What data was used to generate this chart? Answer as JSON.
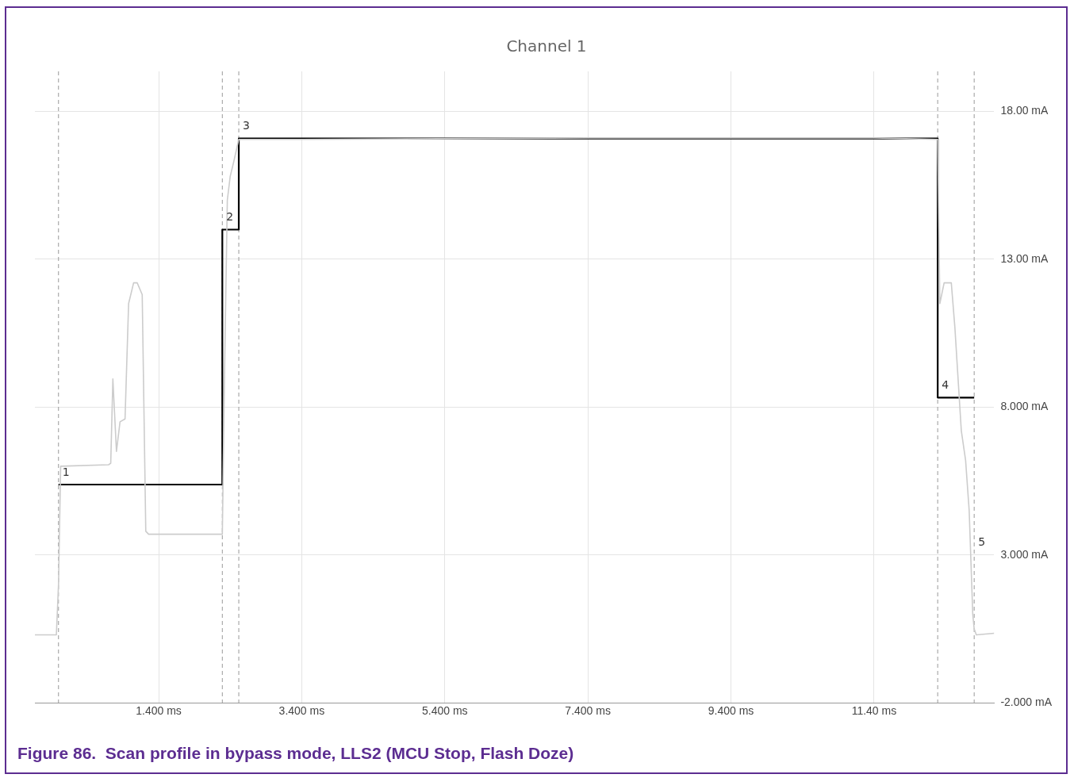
{
  "chart_data": {
    "type": "line",
    "title": "Channel 1",
    "xlim": [
      -0.33,
      13.08
    ],
    "ylim": [
      -2,
      19.35
    ],
    "xticks": [
      {
        "value": 1.4,
        "label": "1.400 ms"
      },
      {
        "value": 3.4,
        "label": "3.400 ms"
      },
      {
        "value": 5.4,
        "label": "5.400 ms"
      },
      {
        "value": 7.4,
        "label": "7.400 ms"
      },
      {
        "value": 9.4,
        "label": "9.400 ms"
      },
      {
        "value": 11.4,
        "label": "11.40 ms"
      }
    ],
    "yticks": [
      {
        "value": -2,
        "label": "-2.000 mA"
      },
      {
        "value": 3,
        "label": "3.000 mA"
      },
      {
        "value": 8,
        "label": "8.000 mA"
      },
      {
        "value": 13,
        "label": "13.00 mA"
      },
      {
        "value": 18,
        "label": "18.00 mA"
      }
    ],
    "grid": true,
    "legend": false,
    "marker": "none",
    "series": [
      {
        "type": "line",
        "color": "#cccccc",
        "x": [
          -0.33,
          -0.03,
          0.0,
          0.03,
          0.7,
          0.73,
          0.76,
          0.81,
          0.86,
          0.93,
          0.98,
          1.05,
          1.1,
          1.17,
          1.22,
          1.26,
          1.3,
          1.35,
          1.4,
          2.29,
          2.32,
          2.36,
          2.4,
          2.45,
          2.52,
          3.4,
          7.4,
          11.4,
          12.29,
          12.32,
          12.38,
          12.48,
          12.53,
          12.62,
          12.68,
          12.73,
          12.78,
          12.8,
          12.83,
          13.08
        ],
        "values": [
          0.3,
          0.3,
          2.0,
          6.0,
          6.05,
          6.1,
          8.95,
          6.5,
          7.5,
          7.6,
          11.5,
          12.2,
          12.2,
          11.8,
          3.8,
          3.7,
          3.7,
          3.7,
          3.7,
          3.7,
          9.0,
          15.0,
          15.8,
          16.3,
          17.05,
          17.05,
          17.1,
          17.1,
          17.05,
          11.5,
          12.2,
          12.2,
          10.7,
          7.2,
          6.2,
          4.5,
          1.0,
          0.5,
          0.3,
          0.35
        ]
      },
      {
        "type": "step",
        "color": "#000000",
        "x": [
          0.0,
          2.29,
          2.52,
          12.29,
          12.8
        ],
        "values": [
          5.38,
          14.0,
          17.08,
          8.32,
          8.32
        ]
      }
    ],
    "ref_lines": [
      {
        "axis": "x",
        "value": 0.0,
        "color": "#999999",
        "line_style": "dashed"
      },
      {
        "axis": "x",
        "value": 2.29,
        "color": "#999999",
        "line_style": "dashed"
      },
      {
        "axis": "x",
        "value": 2.52,
        "color": "#999999",
        "line_style": "dashed"
      },
      {
        "axis": "x",
        "value": 12.29,
        "color": "#999999",
        "line_style": "dashed"
      },
      {
        "axis": "x",
        "value": 12.8,
        "color": "#999999",
        "line_style": "dashed"
      }
    ],
    "annotations": [
      {
        "text": "1",
        "x": 0.0,
        "y": 5.38
      },
      {
        "text": "2",
        "x": 2.29,
        "y": 14.0
      },
      {
        "text": "3",
        "x": 2.52,
        "y": 17.08
      },
      {
        "text": "4",
        "x": 12.29,
        "y": 8.32
      },
      {
        "text": "5",
        "x": 12.8,
        "y": 3.0
      },
      "Figure 86.  Scan profile in bypass mode, LLS2 (MCU Stop, Flash Doze)"
    ]
  }
}
